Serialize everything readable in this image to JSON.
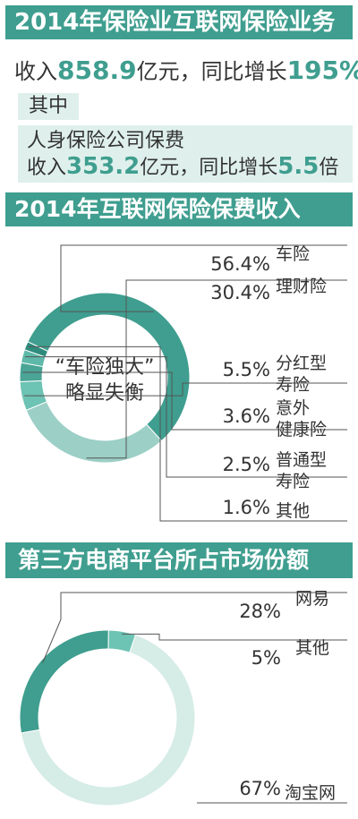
{
  "headline": {
    "title": "2014年保险业互联网保险业务",
    "income_prefix": "收入",
    "income_value": "858.9",
    "income_unit": "亿元，同比增长",
    "income_growth": "195%",
    "of_which": "其中",
    "life_line1": "人身保险公司保费",
    "life_prefix": "收入",
    "life_value": "353.2",
    "life_unit": "亿元，同比增长",
    "life_growth": "5.5",
    "life_times": "倍"
  },
  "chart_data": [
    {
      "type": "pie",
      "title": "2014年互联网保险保费收入",
      "center_label": [
        "“车险独大”",
        "略显失衡"
      ],
      "colors": [
        "#3f9e8f",
        "#9ccfc6",
        "#6dc3b4",
        "#4aa596",
        "#5fb9aa",
        "#2f8c7d"
      ],
      "categories": [
        "车险",
        "理财险",
        "分红型寿险",
        "意外健康险",
        "普通型寿险",
        "其他"
      ],
      "category_lines": [
        [
          "车险"
        ],
        [
          "理财险"
        ],
        [
          "分红型",
          "寿险"
        ],
        [
          "意外",
          "健康险"
        ],
        [
          "普通型",
          "寿险"
        ],
        [
          "其他"
        ]
      ],
      "values": [
        56.4,
        30.4,
        5.5,
        3.6,
        2.5,
        1.6
      ],
      "value_labels": [
        "56.4%",
        "30.4%",
        "5.5%",
        "3.6%",
        "2.5%",
        "1.6%"
      ]
    },
    {
      "type": "pie",
      "title": "第三方电商平台所占市场份额",
      "colors": [
        "#3f9e8f",
        "#6dc3b4",
        "#d6ece7"
      ],
      "categories": [
        "网易",
        "其他",
        "淘宝网"
      ],
      "values": [
        28,
        5,
        67
      ],
      "value_labels": [
        "28%",
        "5%",
        "67%"
      ]
    }
  ]
}
